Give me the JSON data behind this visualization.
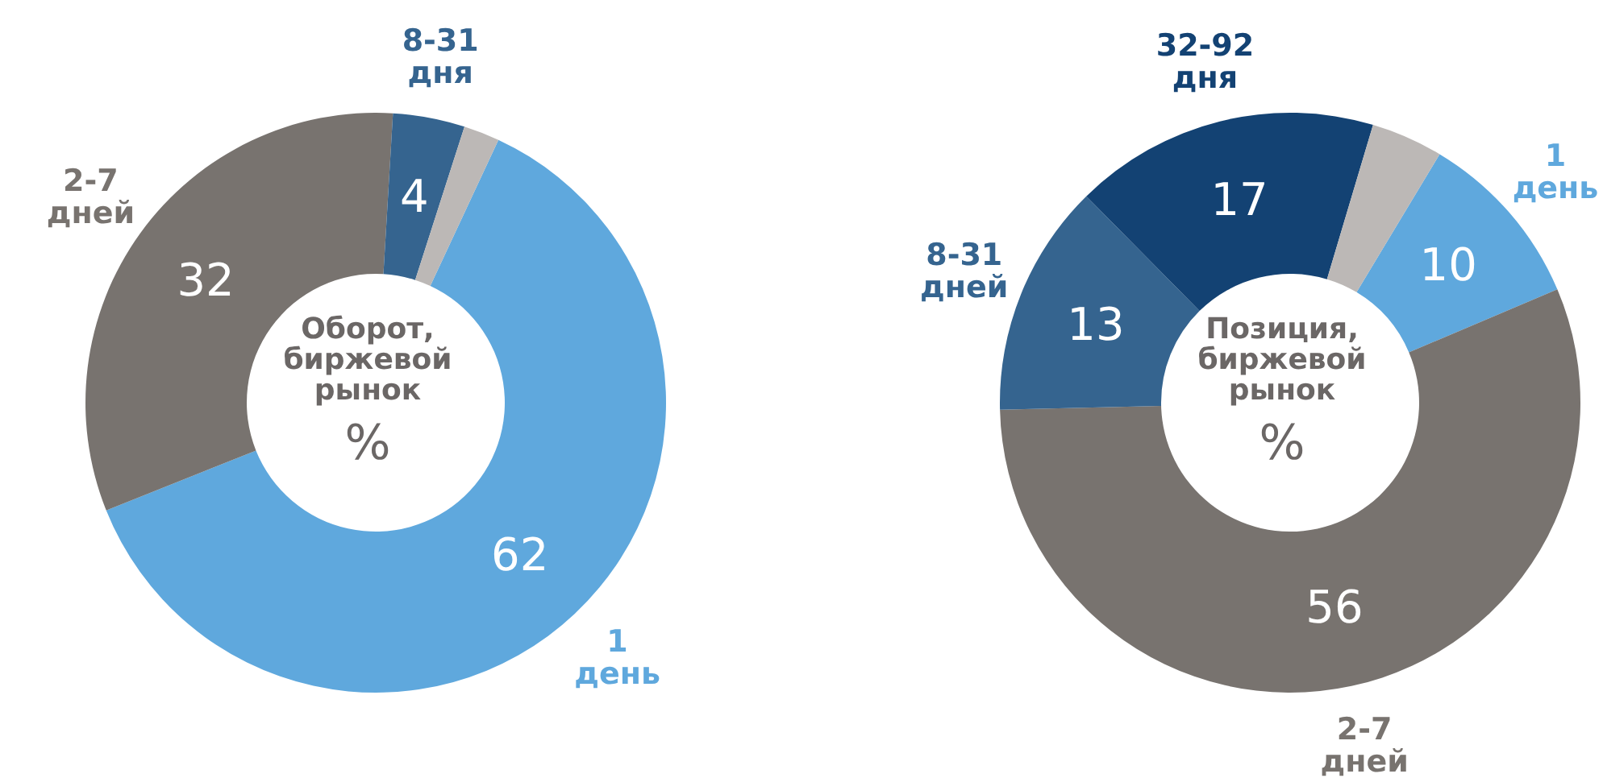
{
  "chart_data": [
    {
      "type": "donut",
      "title": "Оборот, биржевой рынок",
      "annotations": [
        "%"
      ],
      "categories": [
        "1 день",
        "2-7 дней",
        "8-31 дня",
        null
      ],
      "values": [
        62,
        32,
        4,
        2
      ],
      "colors": [
        "#5fa8dd",
        "#78736f",
        "#35648f",
        "#bcb8b6"
      ],
      "value_labels": [
        "62",
        "32",
        "4",
        null
      ],
      "legend": false
    },
    {
      "type": "donut",
      "title": "Позиция, биржевой рынок",
      "annotations": [
        "%"
      ],
      "categories": [
        "1 день",
        "2-7 дней",
        "8-31 дней",
        "32-92 дня",
        null
      ],
      "values": [
        10,
        56,
        13,
        17,
        4
      ],
      "colors": [
        "#5fa8dd",
        "#78736f",
        "#35648f",
        "#134273",
        "#bcb8b6"
      ],
      "value_labels": [
        "10",
        "56",
        "13",
        "17",
        null
      ],
      "legend": false
    }
  ]
}
